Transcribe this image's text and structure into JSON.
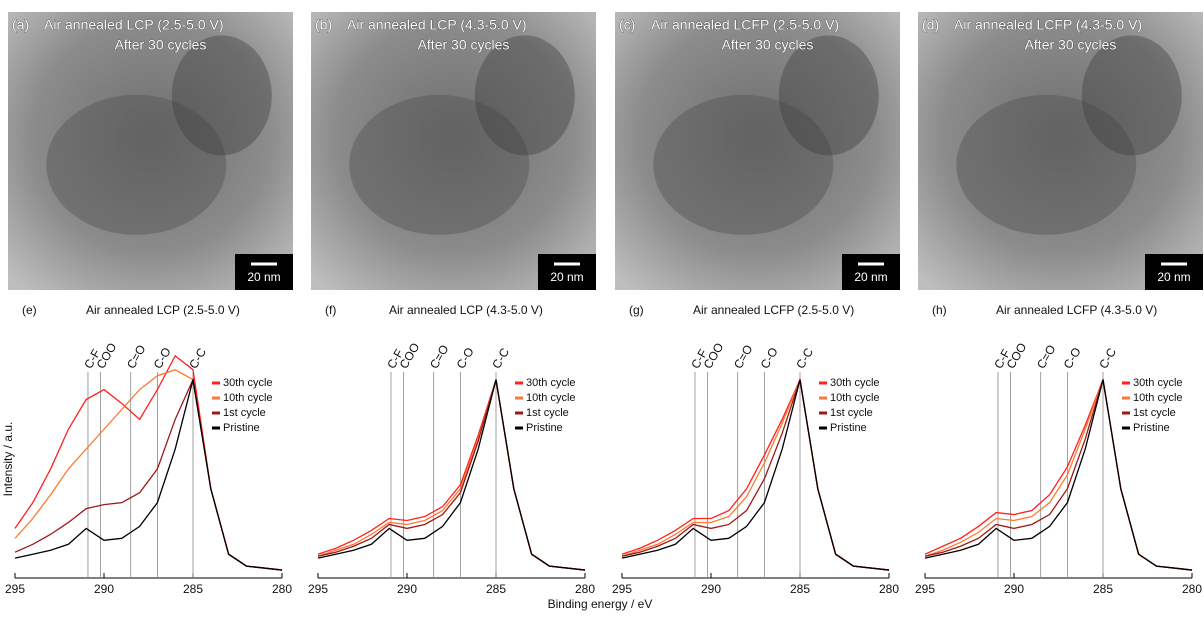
{
  "images": [
    {
      "label": "(a)",
      "title": "Air annealed LCP (2.5-5.0 V)",
      "subtitle": "After 30 cycles",
      "scale": "20 nm"
    },
    {
      "label": "(b)",
      "title": "Air annealed LCP (4.3-5.0 V)",
      "subtitle": "After 30 cycles",
      "scale": "20 nm"
    },
    {
      "label": "(c)",
      "title": "Air annealed LCFP (2.5-5.0 V)",
      "subtitle": "After 30 cycles",
      "scale": "20 nm"
    },
    {
      "label": "(d)",
      "title": "Air annealed LCFP (4.3-5.0 V)",
      "subtitle": "After 30 cycles",
      "scale": "20 nm"
    }
  ],
  "shared": {
    "xlabel": "Binding energy / eV"
  },
  "chart_data": [
    {
      "type": "line",
      "label": "(e)",
      "title": "Air annealed LCP (2.5-5.0 V)",
      "ylabel": "Intensity / a.u.",
      "xlim": [
        295,
        280
      ],
      "xticks": [
        295,
        290,
        285,
        280
      ],
      "ylim": [
        0,
        1.2
      ],
      "annotations": [
        {
          "label": "C-F",
          "x": 290.9
        },
        {
          "label": "COO",
          "x": 290.2
        },
        {
          "label": "C=O",
          "x": 288.5
        },
        {
          "label": "C-O",
          "x": 287.0
        },
        {
          "label": "C-C",
          "x": 285.0
        }
      ],
      "x": [
        295,
        294,
        293,
        292,
        291,
        290,
        289,
        288,
        287,
        286,
        285,
        284,
        283,
        282,
        281,
        280
      ],
      "series": [
        {
          "name": "30th cycle",
          "color": "#ff2020",
          "values": [
            0.25,
            0.38,
            0.55,
            0.75,
            0.9,
            0.95,
            0.88,
            0.8,
            0.95,
            1.12,
            1.05,
            0.45,
            0.12,
            0.06,
            0.05,
            0.04
          ]
        },
        {
          "name": "10th cycle",
          "color": "#ff7a30",
          "values": [
            0.2,
            0.3,
            0.42,
            0.55,
            0.65,
            0.75,
            0.85,
            0.95,
            1.02,
            1.05,
            1.0,
            0.45,
            0.12,
            0.06,
            0.05,
            0.04
          ]
        },
        {
          "name": "1st cycle",
          "color": "#a01818",
          "values": [
            0.13,
            0.17,
            0.22,
            0.28,
            0.35,
            0.37,
            0.38,
            0.43,
            0.55,
            0.8,
            1.0,
            0.45,
            0.12,
            0.06,
            0.05,
            0.04
          ]
        },
        {
          "name": "Pristine",
          "color": "#000000",
          "values": [
            0.1,
            0.12,
            0.14,
            0.17,
            0.25,
            0.19,
            0.2,
            0.26,
            0.38,
            0.65,
            1.0,
            0.45,
            0.12,
            0.06,
            0.05,
            0.04
          ]
        }
      ]
    },
    {
      "type": "line",
      "label": "(f)",
      "title": "Air annealed LCP (4.3-5.0 V)",
      "xlim": [
        295,
        280
      ],
      "xticks": [
        295,
        290,
        285,
        280
      ],
      "ylim": [
        0,
        1.2
      ],
      "annotations": [
        {
          "label": "C-F",
          "x": 290.9
        },
        {
          "label": "COO",
          "x": 290.2
        },
        {
          "label": "C=O",
          "x": 288.5
        },
        {
          "label": "C-O",
          "x": 287.0
        },
        {
          "label": "C-C",
          "x": 285.0
        }
      ],
      "x": [
        295,
        294,
        293,
        292,
        291,
        290,
        289,
        288,
        287,
        286,
        285,
        284,
        283,
        282,
        281,
        280
      ],
      "series": [
        {
          "name": "30th cycle",
          "color": "#ff2020",
          "values": [
            0.12,
            0.15,
            0.19,
            0.24,
            0.3,
            0.29,
            0.31,
            0.36,
            0.47,
            0.72,
            1.0,
            0.45,
            0.12,
            0.06,
            0.05,
            0.04
          ]
        },
        {
          "name": "10th cycle",
          "color": "#ff7a30",
          "values": [
            0.11,
            0.14,
            0.17,
            0.22,
            0.28,
            0.27,
            0.29,
            0.34,
            0.45,
            0.7,
            1.0,
            0.45,
            0.12,
            0.06,
            0.05,
            0.04
          ]
        },
        {
          "name": "1st cycle",
          "color": "#a01818",
          "values": [
            0.11,
            0.13,
            0.16,
            0.2,
            0.27,
            0.25,
            0.27,
            0.32,
            0.43,
            0.69,
            1.0,
            0.45,
            0.12,
            0.06,
            0.05,
            0.04
          ]
        },
        {
          "name": "Pristine",
          "color": "#000000",
          "values": [
            0.1,
            0.12,
            0.14,
            0.17,
            0.25,
            0.19,
            0.2,
            0.26,
            0.38,
            0.65,
            1.0,
            0.45,
            0.12,
            0.06,
            0.05,
            0.04
          ]
        }
      ]
    },
    {
      "type": "line",
      "label": "(g)",
      "title": "Air annealed LCFP (2.5-5.0 V)",
      "xlim": [
        295,
        280
      ],
      "xticks": [
        295,
        290,
        285,
        280
      ],
      "ylim": [
        0,
        1.2
      ],
      "annotations": [
        {
          "label": "C-F",
          "x": 290.9
        },
        {
          "label": "COO",
          "x": 290.2
        },
        {
          "label": "C=O",
          "x": 288.5
        },
        {
          "label": "C-O",
          "x": 287.0
        },
        {
          "label": "C-C",
          "x": 285.0
        }
      ],
      "x": [
        295,
        294,
        293,
        292,
        291,
        290,
        289,
        288,
        287,
        286,
        285,
        284,
        283,
        282,
        281,
        280
      ],
      "series": [
        {
          "name": "30th cycle",
          "color": "#ff2020",
          "values": [
            0.12,
            0.15,
            0.19,
            0.24,
            0.3,
            0.3,
            0.34,
            0.45,
            0.62,
            0.8,
            1.0,
            0.45,
            0.12,
            0.06,
            0.05,
            0.04
          ]
        },
        {
          "name": "10th cycle",
          "color": "#ff7a30",
          "values": [
            0.11,
            0.14,
            0.17,
            0.22,
            0.28,
            0.28,
            0.31,
            0.41,
            0.58,
            0.78,
            1.0,
            0.45,
            0.12,
            0.06,
            0.05,
            0.04
          ]
        },
        {
          "name": "1st cycle",
          "color": "#a01818",
          "values": [
            0.11,
            0.13,
            0.16,
            0.2,
            0.27,
            0.25,
            0.27,
            0.34,
            0.5,
            0.73,
            1.0,
            0.45,
            0.12,
            0.06,
            0.05,
            0.04
          ]
        },
        {
          "name": "Pristine",
          "color": "#000000",
          "values": [
            0.1,
            0.12,
            0.14,
            0.17,
            0.25,
            0.19,
            0.2,
            0.26,
            0.38,
            0.65,
            1.0,
            0.45,
            0.12,
            0.06,
            0.05,
            0.04
          ]
        }
      ]
    },
    {
      "type": "line",
      "label": "(h)",
      "title": "Air annealed LCFP (4.3-5.0 V)",
      "xlim": [
        295,
        280
      ],
      "xticks": [
        295,
        290,
        285,
        280
      ],
      "ylim": [
        0,
        1.2
      ],
      "annotations": [
        {
          "label": "C-F",
          "x": 290.9
        },
        {
          "label": "COO",
          "x": 290.2
        },
        {
          "label": "C=O",
          "x": 288.5
        },
        {
          "label": "C-O",
          "x": 287.0
        },
        {
          "label": "C-C",
          "x": 285.0
        }
      ],
      "x": [
        295,
        294,
        293,
        292,
        291,
        290,
        289,
        288,
        287,
        286,
        285,
        284,
        283,
        282,
        281,
        280
      ],
      "series": [
        {
          "name": "30th cycle",
          "color": "#ff2020",
          "values": [
            0.12,
            0.16,
            0.2,
            0.26,
            0.33,
            0.32,
            0.34,
            0.42,
            0.56,
            0.77,
            1.0,
            0.45,
            0.12,
            0.06,
            0.05,
            0.04
          ]
        },
        {
          "name": "10th cycle",
          "color": "#ff7a30",
          "values": [
            0.11,
            0.14,
            0.18,
            0.23,
            0.3,
            0.29,
            0.31,
            0.38,
            0.52,
            0.75,
            1.0,
            0.45,
            0.12,
            0.06,
            0.05,
            0.04
          ]
        },
        {
          "name": "1st cycle",
          "color": "#a01818",
          "values": [
            0.11,
            0.13,
            0.16,
            0.2,
            0.27,
            0.25,
            0.27,
            0.32,
            0.45,
            0.7,
            1.0,
            0.45,
            0.12,
            0.06,
            0.05,
            0.04
          ]
        },
        {
          "name": "Pristine",
          "color": "#000000",
          "values": [
            0.1,
            0.12,
            0.14,
            0.17,
            0.25,
            0.19,
            0.2,
            0.26,
            0.38,
            0.65,
            1.0,
            0.45,
            0.12,
            0.06,
            0.05,
            0.04
          ]
        }
      ]
    }
  ]
}
